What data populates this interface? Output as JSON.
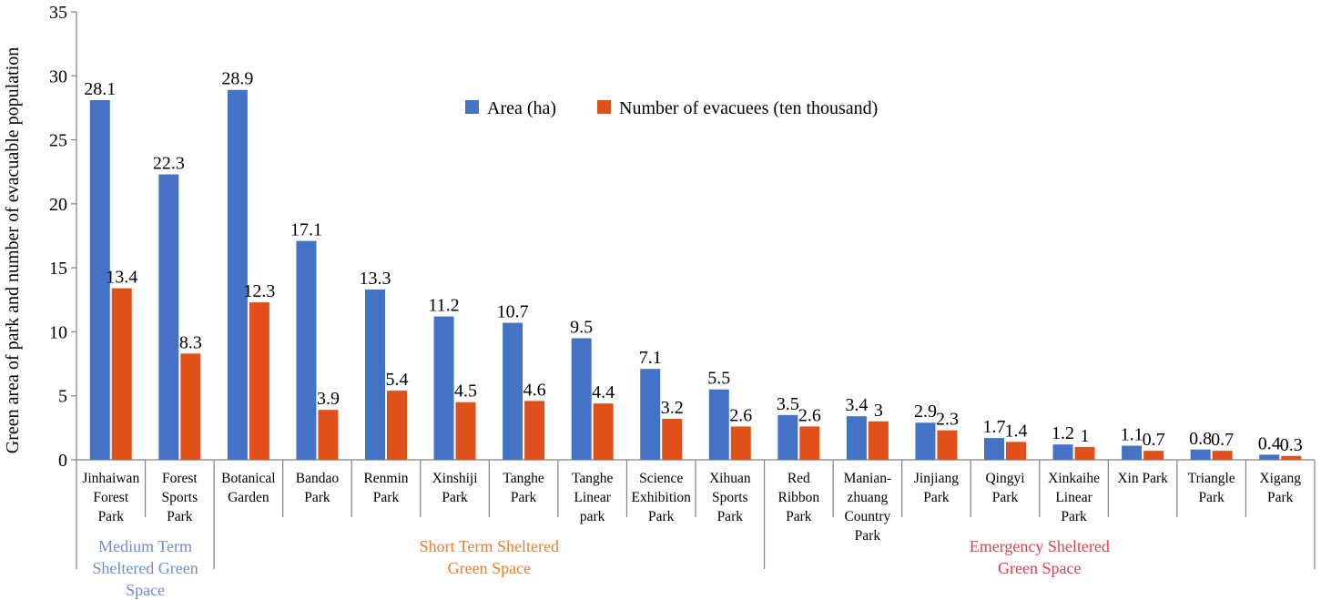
{
  "chart_data": {
    "type": "bar",
    "ylabel": "Green area of park and number of evacuable population",
    "ylim": [
      0,
      35
    ],
    "yticks": [
      0,
      5,
      10,
      15,
      20,
      25,
      30,
      35
    ],
    "legend_position": "top-center",
    "categories": [
      [
        "Jinhaiwan",
        "Forest",
        "Park"
      ],
      [
        "Forest",
        "Sports",
        "Park"
      ],
      [
        "Botanical",
        "Garden"
      ],
      [
        "Bandao",
        "Park"
      ],
      [
        "Renmin",
        "Park"
      ],
      [
        "Xinshiji",
        "Park"
      ],
      [
        "Tanghe",
        "Park"
      ],
      [
        "Tanghe",
        "Linear",
        "park"
      ],
      [
        "Science",
        "Exhibition",
        "Park"
      ],
      [
        "Xihuan",
        "Sports",
        "Park"
      ],
      [
        "Red",
        "Ribbon",
        "Park"
      ],
      [
        "Manian-",
        "zhuang",
        "Country",
        "Park"
      ],
      [
        "Jinjiang",
        "Park"
      ],
      [
        "Qingyi",
        "Park"
      ],
      [
        "Xinkaihe",
        "Linear",
        "Park"
      ],
      [
        "Xin Park"
      ],
      [
        "Triangle",
        "Park"
      ],
      [
        "Xigang",
        "Park"
      ]
    ],
    "series": [
      {
        "name": "Area (ha)",
        "color": "#4472C4",
        "values": [
          28.1,
          22.3,
          28.9,
          17.1,
          13.3,
          11.2,
          10.7,
          9.5,
          7.1,
          5.5,
          3.5,
          3.4,
          2.9,
          1.7,
          1.2,
          1.1,
          0.8,
          0.4
        ],
        "labels": [
          "28.1",
          "22.3",
          "28.9",
          "17.1",
          "13.3",
          "11.2",
          "10.7",
          "9.5",
          "7.1",
          "5.5",
          "3.5",
          "3.4",
          "2.9",
          "1.7",
          "1.2",
          "1.1",
          "0.8",
          "0.4"
        ]
      },
      {
        "name": "Number of evacuees (ten thousand)",
        "color": "#E0501B",
        "values": [
          13.4,
          8.3,
          12.3,
          3.9,
          5.4,
          4.5,
          4.6,
          4.4,
          3.2,
          2.6,
          2.6,
          3,
          2.3,
          1.4,
          1,
          0.7,
          0.7,
          0.3
        ],
        "labels": [
          "13.4",
          "8.3",
          "12.3",
          "3.9",
          "5.4",
          "4.5",
          "4.6",
          "4.4",
          "3.2",
          "2.6",
          "2.6",
          "3",
          "2.3",
          "1.4",
          "1",
          "0.7",
          "0.7",
          "0.3"
        ]
      }
    ],
    "groups": [
      {
        "lines": [
          "Medium Term",
          "Sheltered Green",
          "Space"
        ],
        "color": "#6F8FD0",
        "start": 0,
        "end": 1
      },
      {
        "lines": [
          "Short Term Sheltered",
          "Green Space"
        ],
        "color": "#ED7D31",
        "start": 2,
        "end": 9
      },
      {
        "lines": [
          "Emergency Sheltered",
          "Green Space"
        ],
        "color": "#E03E4A",
        "start": 10,
        "end": 17
      }
    ]
  }
}
